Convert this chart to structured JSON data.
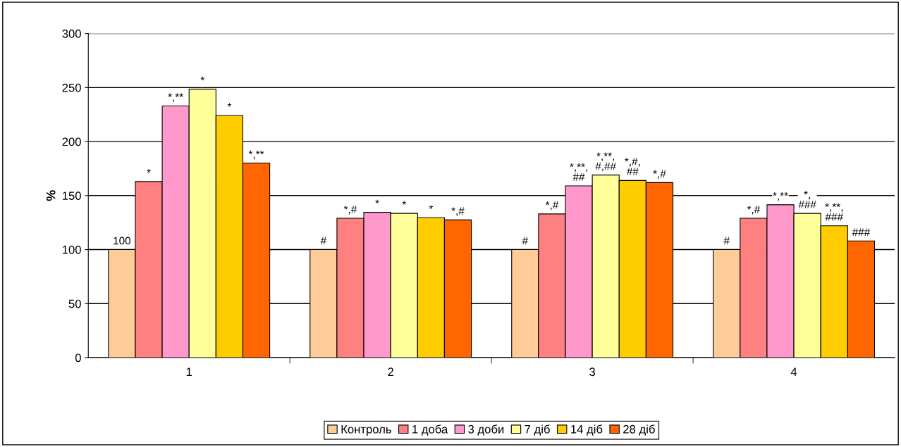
{
  "chart_data": {
    "type": "bar",
    "ylabel": "%",
    "categories": [
      "1",
      "2",
      "3",
      "4"
    ],
    "ylim": [
      0,
      300
    ],
    "yticks": [
      0,
      50,
      100,
      150,
      200,
      250,
      300
    ],
    "grid": "y",
    "legend": "bottom",
    "series": [
      {
        "name": "Контроль",
        "color": "#ffcc99",
        "values": [
          100,
          100,
          100,
          100
        ],
        "value_labels": [
          "100",
          "#",
          "#",
          "#"
        ]
      },
      {
        "name": "1 доба",
        "color": "#ff8080",
        "values": [
          163,
          129,
          133,
          129
        ],
        "value_labels": [
          "*",
          "*,#",
          "*,#",
          "*,#"
        ]
      },
      {
        "name": "3 доби",
        "color": "#ff99cc",
        "values": [
          233,
          134.5,
          159,
          141.5
        ],
        "value_labels": [
          "*,**",
          "*",
          "*,**,##",
          "*,**"
        ]
      },
      {
        "name": "7 діб",
        "color": "#ffff99",
        "values": [
          248.5,
          133.5,
          169,
          133.5
        ],
        "value_labels": [
          "*",
          "*",
          "*,**,#,##",
          "*,###"
        ]
      },
      {
        "name": "14 діб",
        "color": "#ffcc00",
        "values": [
          224,
          129.5,
          164,
          122
        ],
        "value_labels": [
          "*",
          "*",
          "*,#,##",
          "*,**,###"
        ]
      },
      {
        "name": "28 діб",
        "color": "#ff6600",
        "values": [
          180,
          127.5,
          162,
          108
        ],
        "value_labels": [
          "*,**",
          "*,#",
          "*,#",
          "###"
        ]
      }
    ]
  }
}
